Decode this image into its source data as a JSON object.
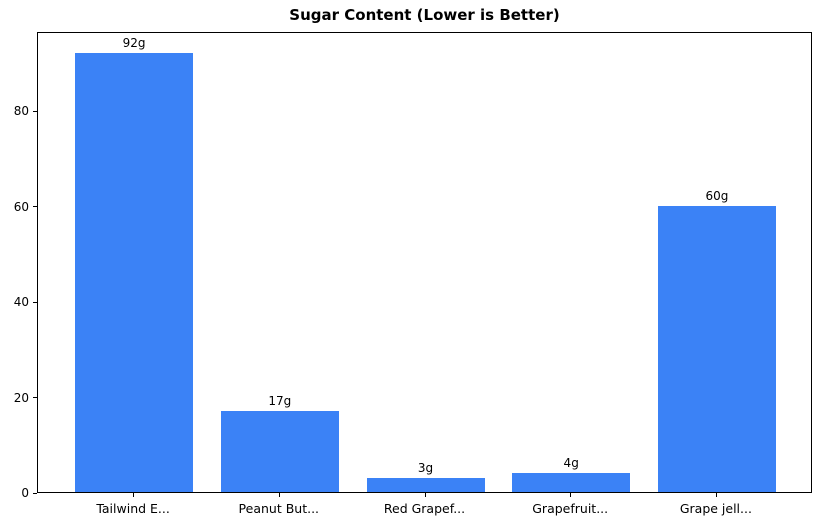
{
  "title": "Sugar Content (Lower is Better)",
  "colors": {
    "bar": "#3b82f6",
    "spine": "#000000",
    "background": "#ffffff",
    "text": "#000000"
  },
  "chart_data": {
    "type": "bar",
    "title": "Sugar Content (Lower is Better)",
    "categories": [
      "Tailwind E...",
      "Peanut But...",
      "Red Grapef...",
      "Grapefruit...",
      "Grape jell..."
    ],
    "values": [
      92,
      17,
      3,
      4,
      60
    ],
    "value_labels": [
      "92g",
      "17g",
      "3g",
      "4g",
      "60g"
    ],
    "xlabel": "",
    "ylabel": "",
    "ylim": [
      0,
      96.6
    ],
    "yticks": [
      0,
      20,
      40,
      60,
      80
    ],
    "grid": false,
    "legend": false,
    "bar_color": "#3b82f6"
  }
}
